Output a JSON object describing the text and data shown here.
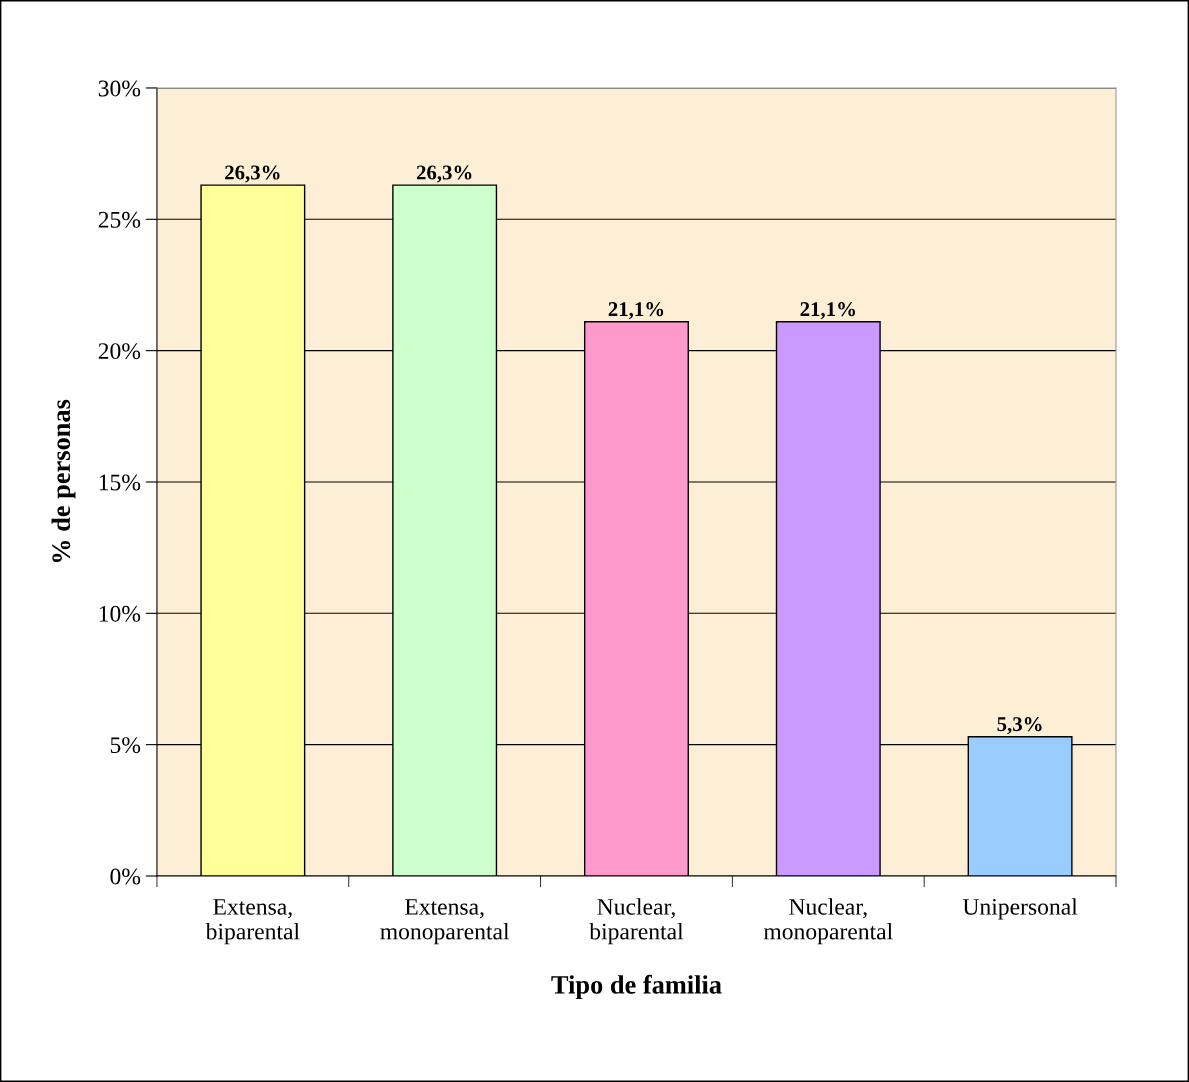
{
  "chart_data": {
    "type": "bar",
    "categories": [
      "Extensa,\nbiparental",
      "Extensa,\nmonoparental",
      "Nuclear,\nbiparental",
      "Nuclear,\nmonoparental",
      "Unipersonal"
    ],
    "values": [
      26.3,
      26.3,
      21.1,
      21.1,
      5.3
    ],
    "colors": [
      "#ffff99",
      "#ccffcc",
      "#ff99cc",
      "#cc99ff",
      "#99ccff"
    ],
    "value_labels": [
      "26,3%",
      "26,3%",
      "21,1%",
      "21,1%",
      "5,3%"
    ],
    "xlabel": "Tipo de familia",
    "ylabel": "% de personas",
    "ylim": [
      0,
      30
    ],
    "yticks": [
      {
        "value": 0,
        "label": "0%"
      },
      {
        "value": 5,
        "label": "5%"
      },
      {
        "value": 10,
        "label": "10%"
      },
      {
        "value": 15,
        "label": "15%"
      },
      {
        "value": 20,
        "label": "20%"
      },
      {
        "value": 25,
        "label": "25%"
      },
      {
        "value": 30,
        "label": "30%"
      }
    ],
    "grid": "y",
    "legend": false
  }
}
